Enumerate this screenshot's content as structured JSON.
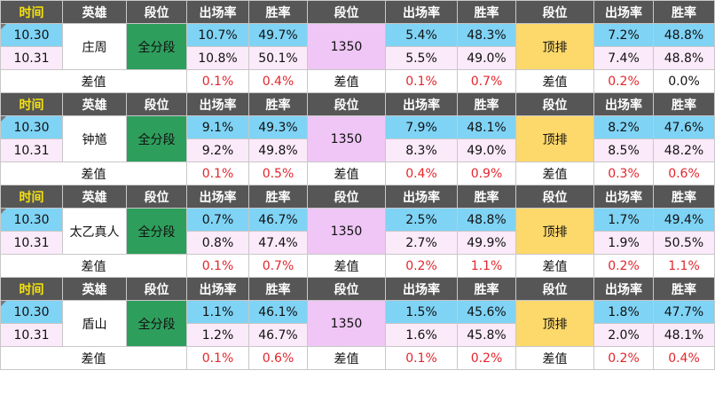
{
  "headers": {
    "time": "时间",
    "hero": "英雄",
    "tier_label": "段位",
    "pick_rate": "出场率",
    "win_rate": "胜率"
  },
  "diff_label": "差值",
  "colors": {
    "header_bg": "#565656",
    "header_time_text": "#f5e20c",
    "row_1030": "#7fd3f5",
    "row_1031": "#fbeaf9",
    "tier_all": "#2e9e5c",
    "tier_1350": "#efc6f5",
    "tier_top": "#fdd86a",
    "diff_red": "#e3262d"
  },
  "blocks": [
    {
      "hero": "庄周",
      "tiers": [
        {
          "name": "全分段",
          "d1030": {
            "pick": "10.7%",
            "win": "49.7%"
          },
          "d1031": {
            "pick": "10.8%",
            "win": "50.1%"
          },
          "diff": {
            "pick": "0.1%",
            "win": "0.4%"
          }
        },
        {
          "name": "1350",
          "d1030": {
            "pick": "5.4%",
            "win": "48.3%"
          },
          "d1031": {
            "pick": "5.5%",
            "win": "49.0%"
          },
          "diff": {
            "pick": "0.1%",
            "win": "0.7%"
          }
        },
        {
          "name": "顶排",
          "d1030": {
            "pick": "7.2%",
            "win": "48.8%"
          },
          "d1031": {
            "pick": "7.4%",
            "win": "48.8%"
          },
          "diff": {
            "pick": "0.2%",
            "win": "0.0%"
          }
        }
      ],
      "dates": [
        "10.30",
        "10.31"
      ]
    },
    {
      "hero": "钟馗",
      "tiers": [
        {
          "name": "全分段",
          "d1030": {
            "pick": "9.1%",
            "win": "49.3%"
          },
          "d1031": {
            "pick": "9.2%",
            "win": "49.8%"
          },
          "diff": {
            "pick": "0.1%",
            "win": "0.5%"
          }
        },
        {
          "name": "1350",
          "d1030": {
            "pick": "7.9%",
            "win": "48.1%"
          },
          "d1031": {
            "pick": "8.3%",
            "win": "49.0%"
          },
          "diff": {
            "pick": "0.4%",
            "win": "0.9%"
          }
        },
        {
          "name": "顶排",
          "d1030": {
            "pick": "8.2%",
            "win": "47.6%"
          },
          "d1031": {
            "pick": "8.5%",
            "win": "48.2%"
          },
          "diff": {
            "pick": "0.3%",
            "win": "0.6%"
          }
        }
      ],
      "dates": [
        "10.30",
        "10.31"
      ]
    },
    {
      "hero": "太乙真人",
      "tiers": [
        {
          "name": "全分段",
          "d1030": {
            "pick": "0.7%",
            "win": "46.7%"
          },
          "d1031": {
            "pick": "0.8%",
            "win": "47.4%"
          },
          "diff": {
            "pick": "0.1%",
            "win": "0.7%"
          }
        },
        {
          "name": "1350",
          "d1030": {
            "pick": "2.5%",
            "win": "48.8%"
          },
          "d1031": {
            "pick": "2.7%",
            "win": "49.9%"
          },
          "diff": {
            "pick": "0.2%",
            "win": "1.1%"
          }
        },
        {
          "name": "顶排",
          "d1030": {
            "pick": "1.7%",
            "win": "49.4%"
          },
          "d1031": {
            "pick": "1.9%",
            "win": "50.5%"
          },
          "diff": {
            "pick": "0.2%",
            "win": "1.1%"
          }
        }
      ],
      "dates": [
        "10.30",
        "10.31"
      ]
    },
    {
      "hero": "盾山",
      "tiers": [
        {
          "name": "全分段",
          "d1030": {
            "pick": "1.1%",
            "win": "46.1%"
          },
          "d1031": {
            "pick": "1.2%",
            "win": "46.7%"
          },
          "diff": {
            "pick": "0.1%",
            "win": "0.6%"
          }
        },
        {
          "name": "1350",
          "d1030": {
            "pick": "1.5%",
            "win": "45.6%"
          },
          "d1031": {
            "pick": "1.6%",
            "win": "45.8%"
          },
          "diff": {
            "pick": "0.1%",
            "win": "0.2%"
          }
        },
        {
          "name": "顶排",
          "d1030": {
            "pick": "1.8%",
            "win": "47.7%"
          },
          "d1031": {
            "pick": "2.0%",
            "win": "48.1%"
          },
          "diff": {
            "pick": "0.2%",
            "win": "0.4%"
          }
        }
      ],
      "dates": [
        "10.30",
        "10.31"
      ]
    }
  ]
}
